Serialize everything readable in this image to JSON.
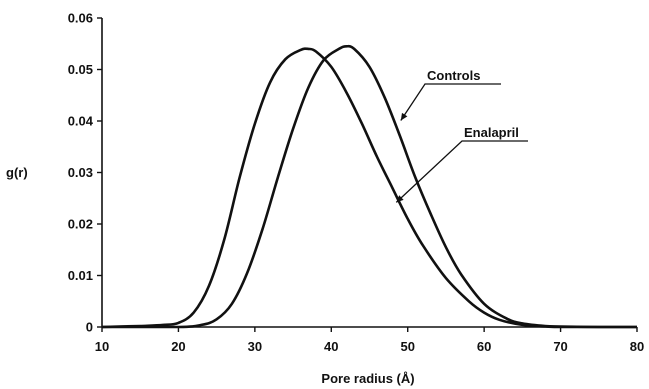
{
  "chart_data": {
    "type": "line",
    "title": "",
    "xlabel": "Pore radius (Å)",
    "ylabel": "g(r)",
    "xlim": [
      10,
      80
    ],
    "ylim": [
      0,
      0.06
    ],
    "x_ticks": [
      "10",
      "20",
      "30",
      "40",
      "50",
      "60",
      "70",
      "80"
    ],
    "y_ticks": [
      "0",
      "0.01",
      "0.02",
      "0.03",
      "0.04",
      "0.05",
      "0.06"
    ],
    "grid": false,
    "legend": "annotations",
    "series": [
      {
        "name": "Enalapril",
        "x": [
          10,
          15,
          18,
          20,
          22,
          24,
          26,
          28,
          30,
          32,
          34,
          36,
          37,
          38,
          40,
          42,
          44,
          46,
          48,
          50,
          52,
          55,
          58,
          60,
          62,
          65,
          68,
          70,
          75,
          80
        ],
        "y": [
          0,
          0.0002,
          0.0004,
          0.0008,
          0.0028,
          0.008,
          0.017,
          0.029,
          0.0395,
          0.0475,
          0.052,
          0.0538,
          0.054,
          0.0535,
          0.0505,
          0.0455,
          0.0395,
          0.033,
          0.027,
          0.021,
          0.0158,
          0.0095,
          0.005,
          0.0028,
          0.0014,
          0.0004,
          0.0001,
          0,
          0,
          0
        ]
      },
      {
        "name": "Controls",
        "x": [
          10,
          20,
          23,
          25,
          27,
          29,
          31,
          33,
          35,
          37,
          39,
          41,
          42,
          43,
          45,
          47,
          49,
          51,
          53,
          55,
          57,
          60,
          63,
          65,
          68,
          70,
          75,
          80
        ],
        "y": [
          0,
          0,
          0.0004,
          0.0015,
          0.0045,
          0.0105,
          0.019,
          0.029,
          0.0385,
          0.0465,
          0.0518,
          0.054,
          0.0545,
          0.054,
          0.0505,
          0.0445,
          0.037,
          0.029,
          0.022,
          0.0155,
          0.0102,
          0.0045,
          0.0016,
          0.0007,
          0.0002,
          0.0001,
          0,
          0
        ]
      }
    ],
    "annotations": [
      {
        "text": "Controls",
        "series": "Controls",
        "point_x": 49.1,
        "point_y": 0.0401
      },
      {
        "text": "Enalapril",
        "series": "Enalapril",
        "point_x": 48.5,
        "point_y": 0.0242
      }
    ]
  }
}
